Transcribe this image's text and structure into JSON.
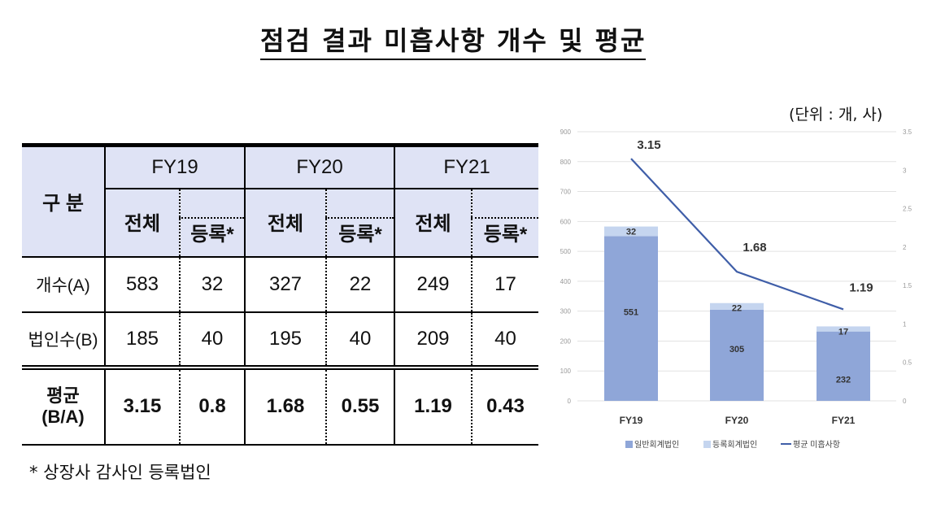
{
  "title": "점검 결과 미흡사항 개수 및 평균",
  "unit": "(단위 : 개, 사)",
  "footnote": "* 상장사 감사인 등록법인",
  "table": {
    "corner": "구 분",
    "years": [
      "FY19",
      "FY20",
      "FY21"
    ],
    "sub_total": "전체",
    "sub_reg": "등록*",
    "rows": [
      {
        "label": "개수(A)",
        "values": [
          "583",
          "32",
          "327",
          "22",
          "249",
          "17"
        ]
      },
      {
        "label": "법인수(B)",
        "values": [
          "185",
          "40",
          "195",
          "40",
          "209",
          "40"
        ]
      },
      {
        "label": "평균 (B/A)",
        "label1": "평균",
        "label2": "(B/A)",
        "values": [
          "3.15",
          "0.8",
          "1.68",
          "0.55",
          "1.19",
          "0.43"
        ]
      }
    ]
  },
  "chart_data": {
    "type": "bar",
    "stacked": true,
    "categories": [
      "FY19",
      "FY20",
      "FY21"
    ],
    "series": [
      {
        "name": "일반회계법인",
        "type": "bar",
        "axis": "left",
        "color": "#8fa6d8",
        "values": [
          551,
          305,
          232
        ]
      },
      {
        "name": "등록회계법인",
        "type": "bar",
        "axis": "left",
        "color": "#c5d5ef",
        "values": [
          32,
          22,
          17
        ]
      },
      {
        "name": "평균 미흡사항",
        "type": "line",
        "axis": "right",
        "color": "#3f5ea8",
        "values": [
          3.15,
          1.68,
          1.19
        ]
      }
    ],
    "ylim": [
      0,
      900
    ],
    "yticks": [
      "0",
      "100",
      "200",
      "300",
      "400",
      "500",
      "600",
      "700",
      "800",
      "900"
    ],
    "y2lim": [
      0,
      3.5
    ],
    "y2ticks": [
      "0",
      "0.5",
      "1",
      "1.5",
      "2",
      "2.5",
      "3",
      "3.5"
    ],
    "grid": true,
    "legend_position": "bottom"
  }
}
